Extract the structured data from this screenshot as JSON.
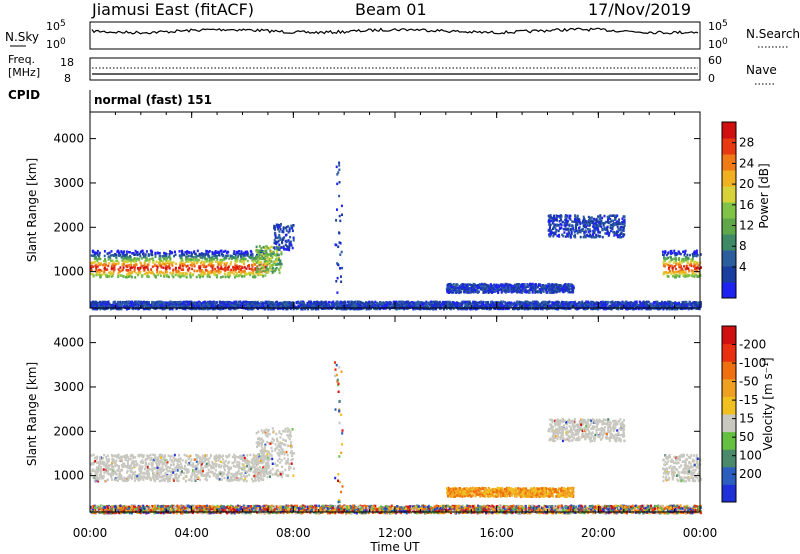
{
  "header": {
    "radar": "Jiamusi East (fitACF)",
    "beam": "Beam 01",
    "date": "17/Nov/2019"
  },
  "noise_panel": {
    "left_label": "N.Sky",
    "right_label": "N.Search",
    "ticks_left": [
      "10^5",
      "10^0"
    ],
    "ticks_right": [
      "10^5",
      "10^0"
    ]
  },
  "freq_panel": {
    "left_label_1": "Freq.",
    "left_label_2": "[MHz]",
    "ticks_left": [
      "18",
      "8"
    ],
    "ticks_right": [
      "60",
      "0"
    ],
    "right_label": "Nave"
  },
  "cpid_panel": {
    "label": "CPID",
    "value": "normal (fast) 151"
  },
  "x_axis": {
    "label": "Time UT",
    "ticks": [
      "00:00",
      "04:00",
      "08:00",
      "12:00",
      "16:00",
      "20:00",
      "00:00"
    ]
  },
  "chart_data": [
    {
      "type": "heatmap",
      "name": "power",
      "ylabel": "Slant Range [km]",
      "y_ticks": [
        "1000",
        "2000",
        "3000",
        "4000"
      ],
      "ylim": [
        180,
        4600
      ],
      "xlim_hours": [
        0,
        24
      ],
      "colorbar": {
        "label": "Power [dB]",
        "ticks": [
          "4",
          "8",
          "12",
          "16",
          "20",
          "24",
          "28"
        ],
        "colors": [
          "#1f22f0",
          "#1a3ea0",
          "#2c5e9e",
          "#3e8a66",
          "#5ea84a",
          "#7fc446",
          "#d8d23a",
          "#f0b020",
          "#f07a16",
          "#e83a12",
          "#d01010"
        ]
      },
      "regions": [
        {
          "t": [
            0.0,
            7.0
          ],
          "range": [
            900,
            1500
          ],
          "level": "high"
        },
        {
          "t": [
            6.5,
            7.5
          ],
          "range": [
            1000,
            1600
          ],
          "level": "mid"
        },
        {
          "t": [
            7.2,
            8.0
          ],
          "range": [
            1500,
            2100
          ],
          "level": "low"
        },
        {
          "t": [
            18.0,
            21.0
          ],
          "range": [
            1800,
            2300
          ],
          "level": "low"
        },
        {
          "t": [
            14.0,
            19.0
          ],
          "range": [
            550,
            750
          ],
          "level": "low"
        },
        {
          "t": [
            22.5,
            24.0
          ],
          "range": [
            900,
            1500
          ],
          "level": "high"
        },
        {
          "t": [
            0.0,
            24.0
          ],
          "range": [
            180,
            350
          ],
          "level": "low"
        },
        {
          "t": [
            9.6,
            9.9
          ],
          "range": [
            200,
            3600
          ],
          "level": "low"
        }
      ]
    },
    {
      "type": "heatmap",
      "name": "velocity",
      "ylabel": "Slant Range [km]",
      "y_ticks": [
        "1000",
        "2000",
        "3000",
        "4000"
      ],
      "ylim": [
        180,
        4600
      ],
      "xlim_hours": [
        0,
        24
      ],
      "colorbar": {
        "label": "Velocity [m s⁻¹]",
        "ticks": [
          "200",
          "100",
          "50",
          "15",
          "-15",
          "-50",
          "-100",
          "-200"
        ],
        "colors": [
          "#2030d8",
          "#2c5ec0",
          "#4a8a6a",
          "#66c040",
          "#c8c8c0",
          "#f0c020",
          "#f0a020",
          "#f07010",
          "#e83010",
          "#d01010"
        ]
      },
      "regions": [
        {
          "t": [
            0.0,
            7.0
          ],
          "range": [
            900,
            1500
          ],
          "level": "ground"
        },
        {
          "t": [
            6.5,
            8.0
          ],
          "range": [
            1000,
            2100
          ],
          "level": "ground"
        },
        {
          "t": [
            18.0,
            21.0
          ],
          "range": [
            1800,
            2300
          ],
          "level": "ground"
        },
        {
          "t": [
            14.0,
            19.0
          ],
          "range": [
            550,
            750
          ],
          "level": "negative"
        },
        {
          "t": [
            22.5,
            24.0
          ],
          "range": [
            900,
            1500
          ],
          "level": "ground"
        },
        {
          "t": [
            0.0,
            24.0
          ],
          "range": [
            180,
            350
          ],
          "level": "mixed"
        },
        {
          "t": [
            9.6,
            9.9
          ],
          "range": [
            200,
            3600
          ],
          "level": "mixed"
        }
      ]
    }
  ]
}
